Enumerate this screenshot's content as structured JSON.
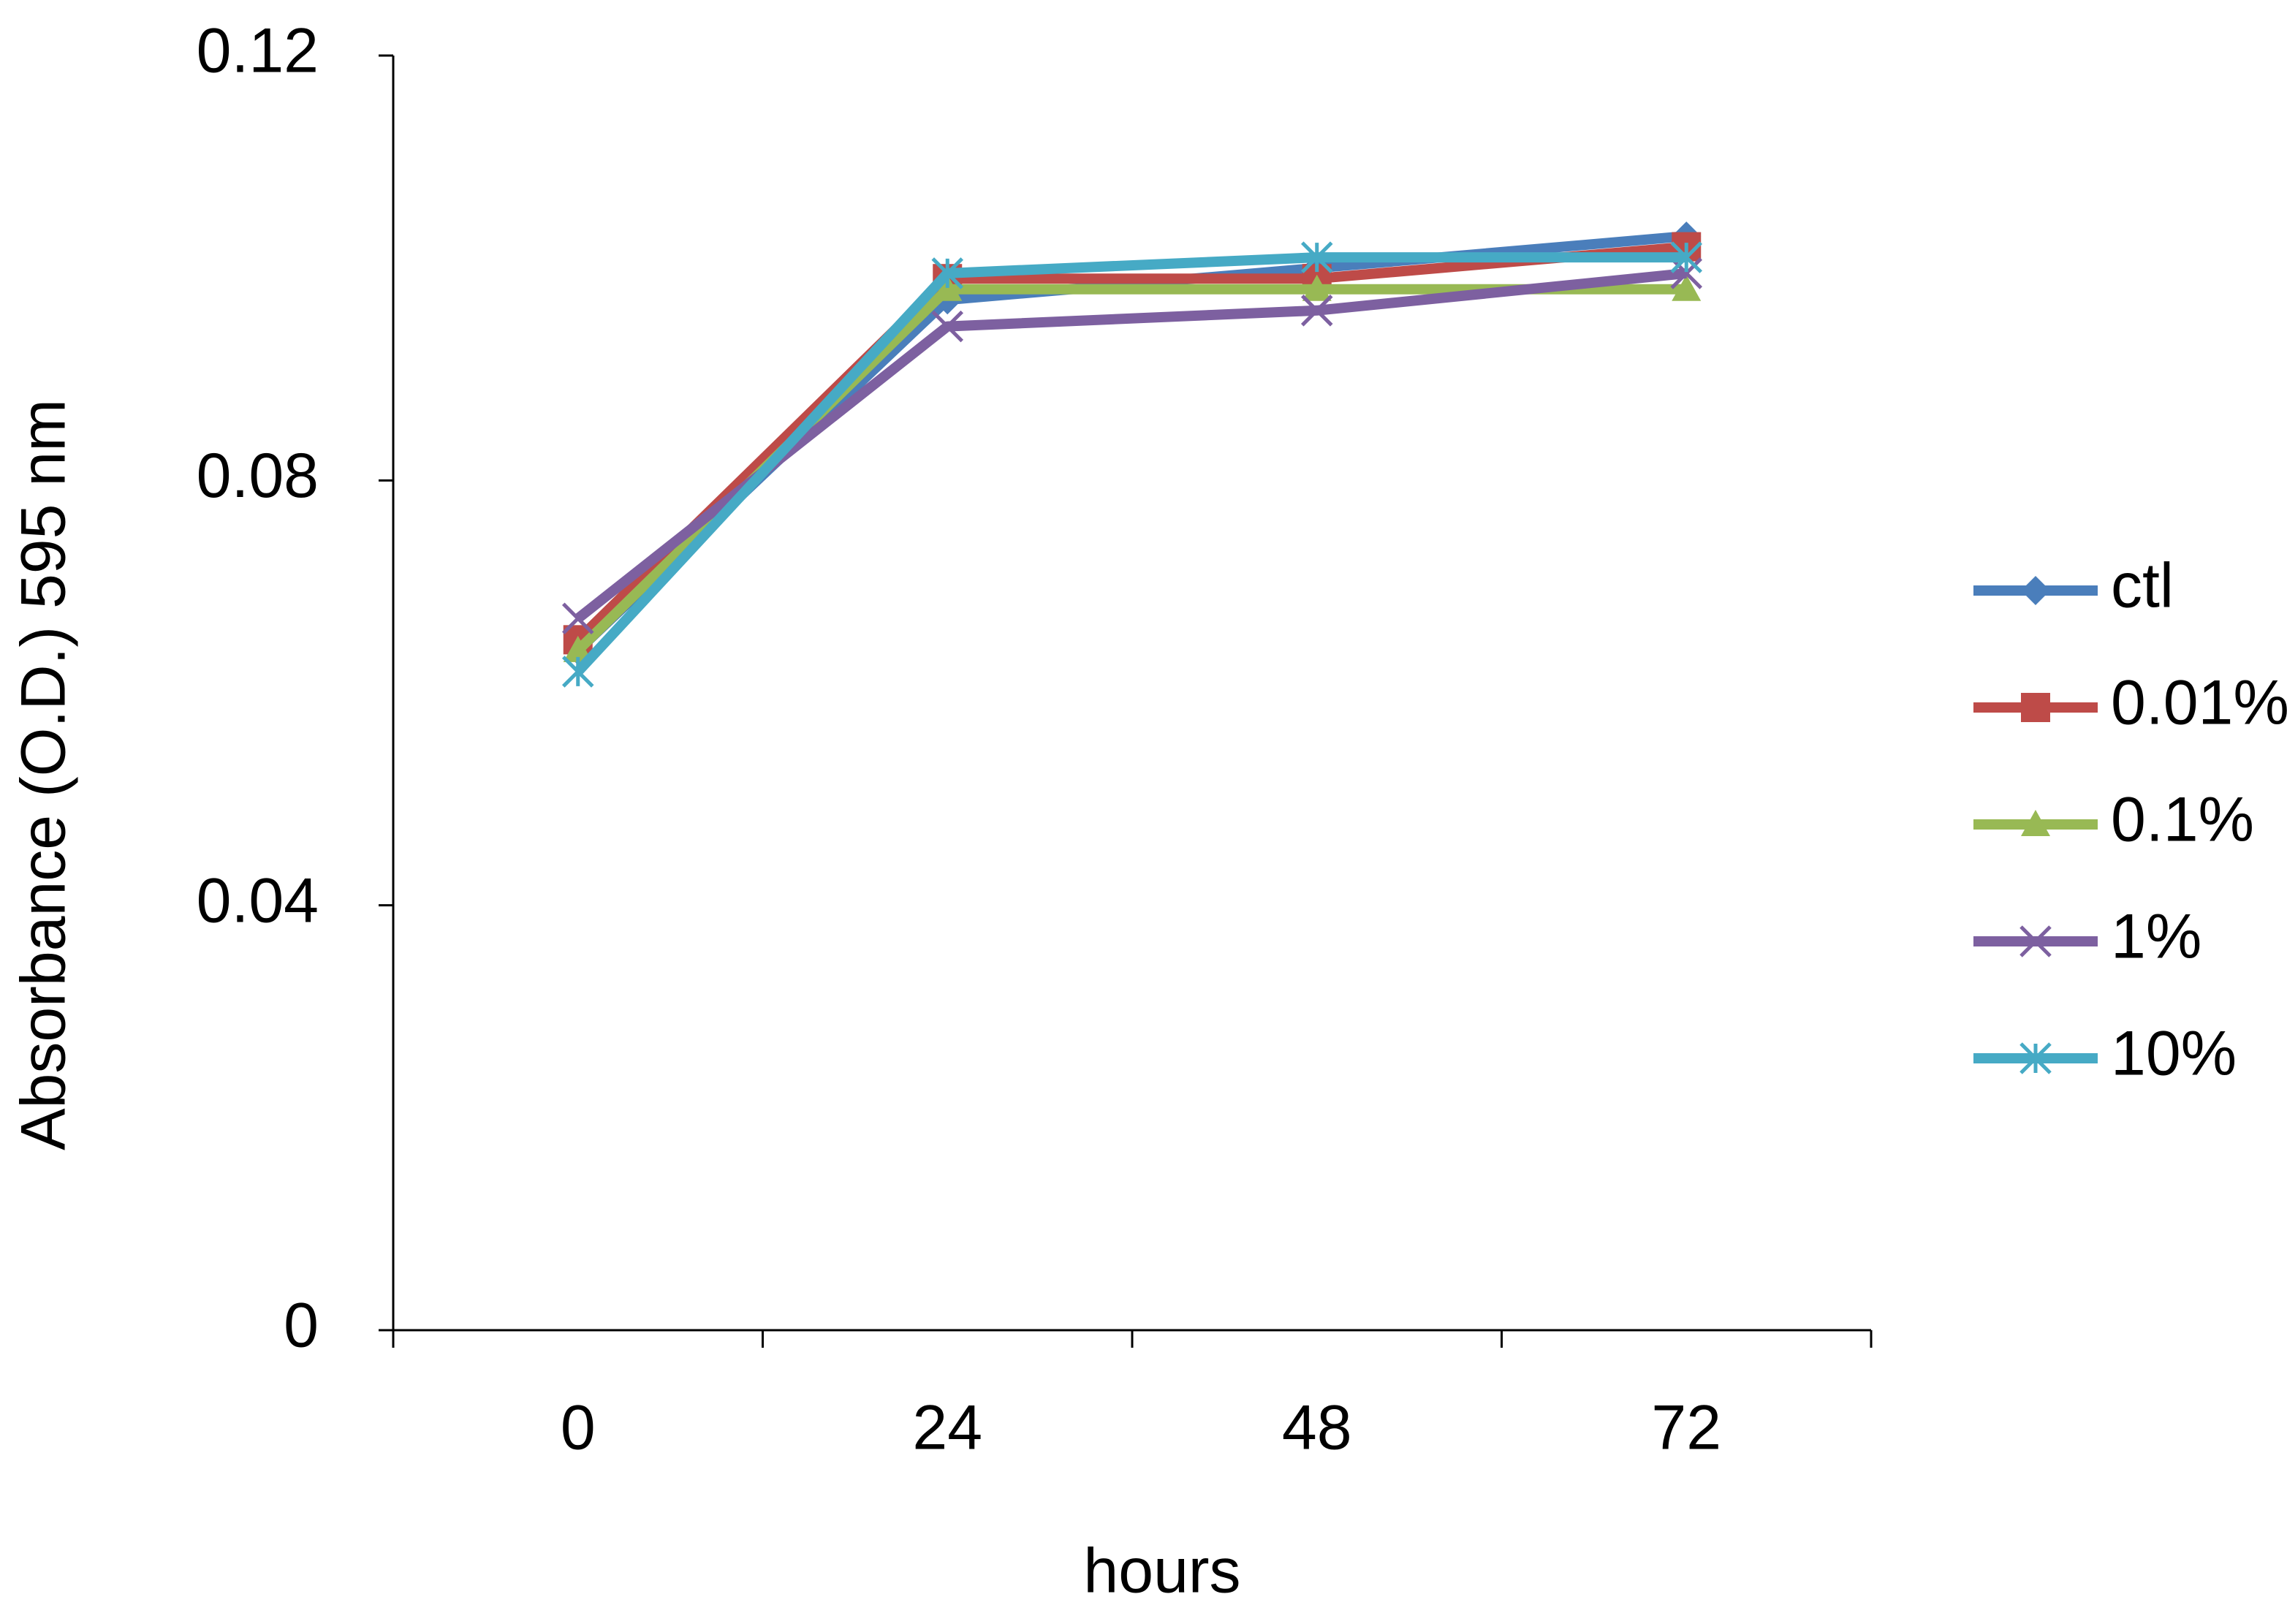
{
  "chart_data": {
    "type": "line",
    "y_label": "Absorbance (O.D.) 595 nm",
    "x_label": "hours",
    "categories": [
      "0",
      "24",
      "48",
      "72"
    ],
    "series": [
      {
        "name": "ctl",
        "color": "#4a7ebb",
        "marker": "diamond",
        "values": [
          0.064,
          0.097,
          0.1,
          0.103
        ]
      },
      {
        "name": "0.01%",
        "color": "#be4b48",
        "marker": "square",
        "values": [
          0.065,
          0.099,
          0.099,
          0.102
        ]
      },
      {
        "name": "0.1%",
        "color": "#98b954",
        "marker": "triangle",
        "values": [
          0.064,
          0.098,
          0.098,
          0.098
        ]
      },
      {
        "name": "1%",
        "color": "#7d60a0",
        "marker": "x",
        "values": [
          0.067,
          0.0945,
          0.096,
          0.0995
        ]
      },
      {
        "name": "10%",
        "color": "#46aac5",
        "marker": "star",
        "values": [
          0.062,
          0.0995,
          0.101,
          0.101
        ]
      }
    ],
    "ylim": [
      0,
      0.12
    ],
    "yticks": [
      0,
      0.04,
      0.08,
      0.12
    ],
    "legend": "right"
  }
}
